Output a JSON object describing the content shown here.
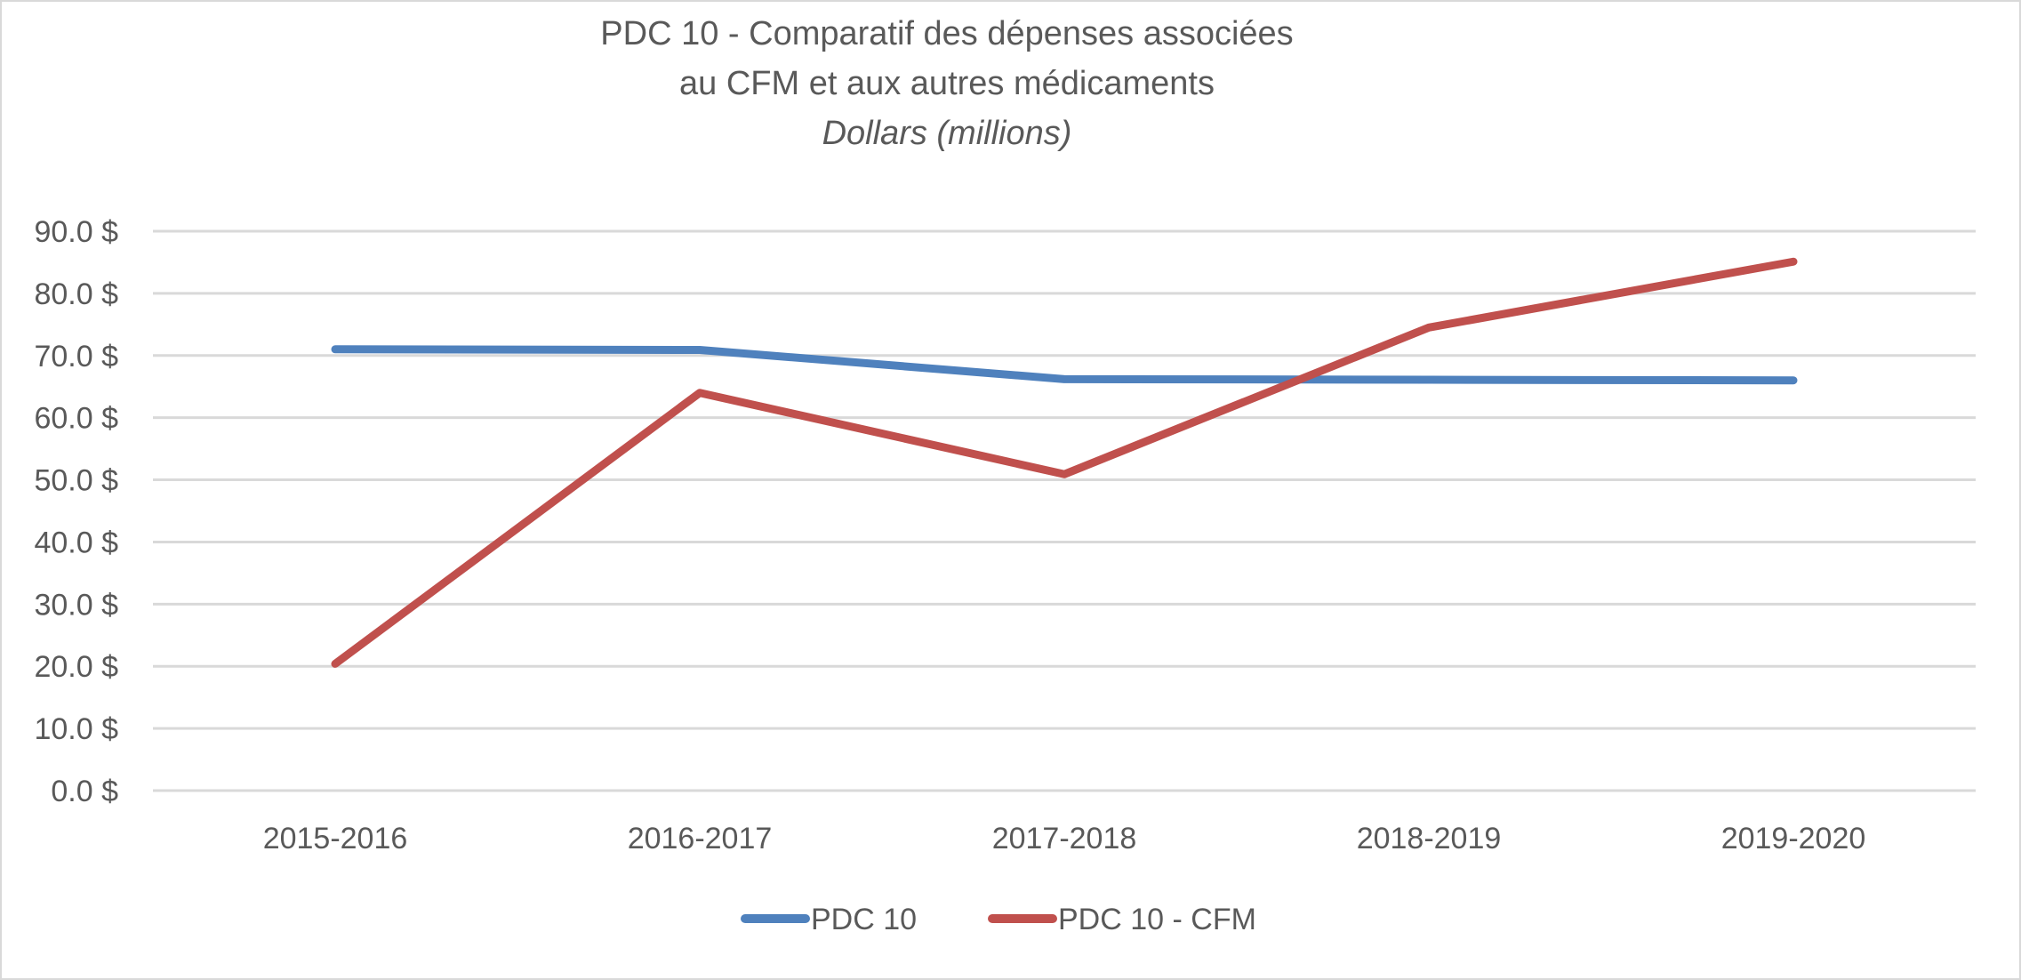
{
  "chart_data": {
    "type": "line",
    "title_lines": [
      "PDC 10 - Comparatif des dépenses associées",
      "au CFM et aux autres médicaments"
    ],
    "subtitle": "Dollars (millions)",
    "xlabel": "",
    "ylabel": "",
    "categories": [
      "2015-2016",
      "2016-2017",
      "2017-2018",
      "2018-2019",
      "2019-2020"
    ],
    "series": [
      {
        "name": "PDC 10",
        "color": "#4f81bd",
        "values": [
          71.0,
          70.9,
          66.2,
          66.1,
          66.0
        ]
      },
      {
        "name": "PDC 10 - CFM",
        "color": "#c0504d",
        "values": [
          20.4,
          64.0,
          50.9,
          74.5,
          85.1
        ]
      }
    ],
    "ylim": [
      0,
      90
    ],
    "y_ticks": [
      0,
      10,
      20,
      30,
      40,
      50,
      60,
      70,
      80,
      90
    ],
    "y_tick_labels": [
      "0.0 $",
      "10.0 $",
      "20.0 $",
      "30.0 $",
      "40.0 $",
      "50.0 $",
      "60.0 $",
      "70.0 $",
      "80.0 $",
      "90.0 $"
    ],
    "grid": true,
    "legend_position": "bottom-center"
  }
}
